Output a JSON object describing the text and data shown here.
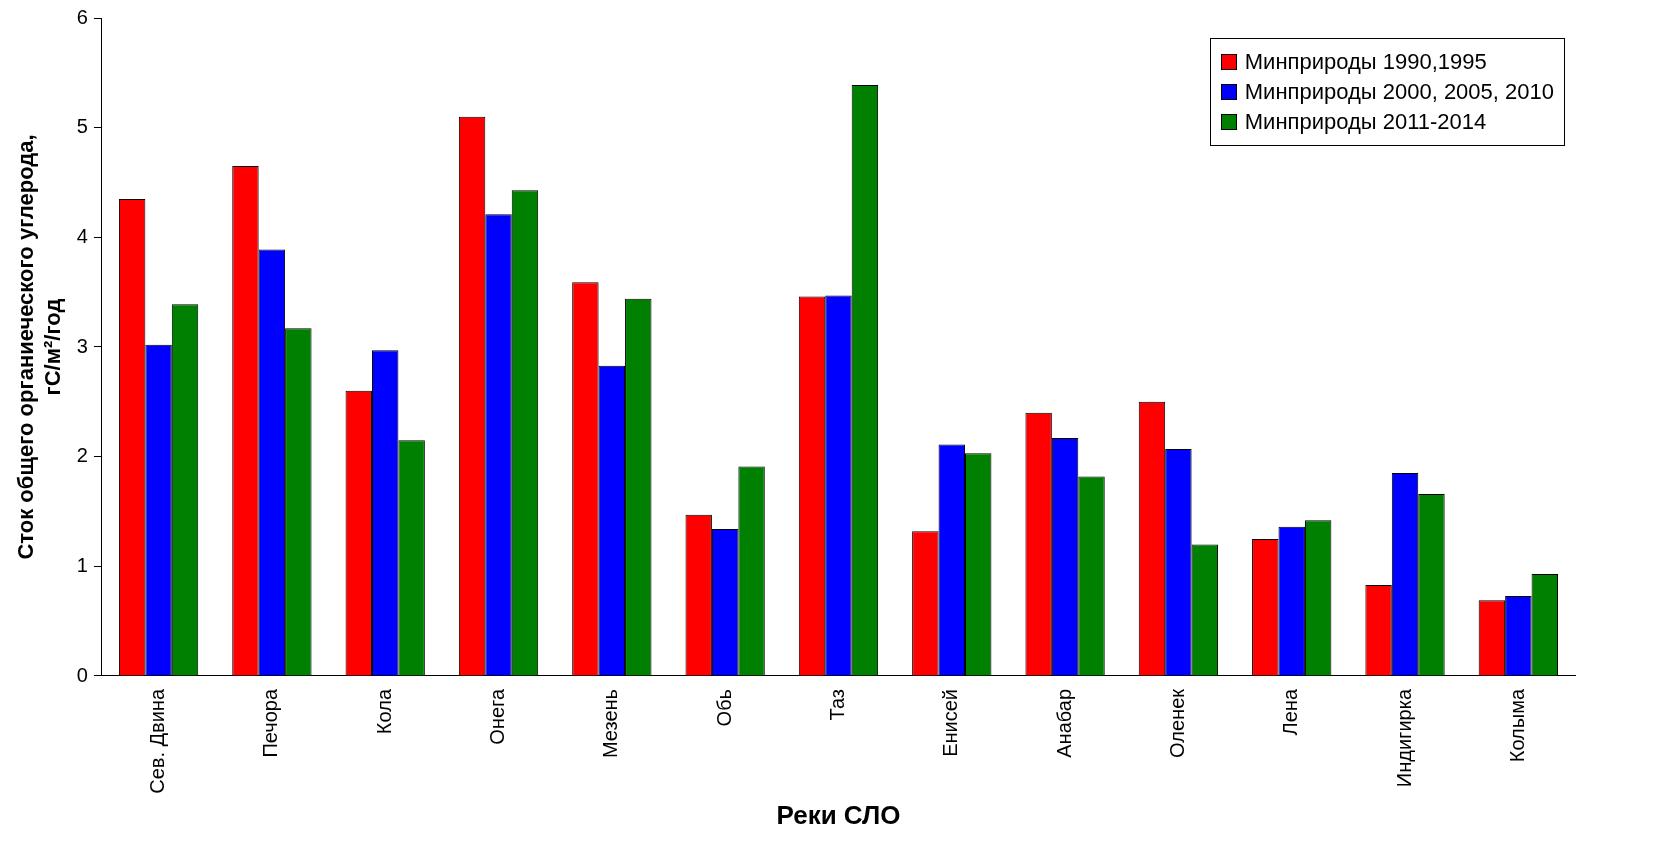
{
  "chart_data": {
    "type": "bar",
    "xlabel": "Реки СЛО",
    "ylabel": "Сток общего органиеческого углерода, гС/м²/год",
    "categories": [
      "Сев. Двина",
      "Печора",
      "Кола",
      "Онега",
      "Мезень",
      "Обь",
      "Таз",
      "Енисей",
      "Анабар",
      "Оленек",
      "Лена",
      "Индигирка",
      "Колыма"
    ],
    "series": [
      {
        "name": "Минприроды 1990,1995",
        "color": "#ff0000",
        "values": [
          4.35,
          4.65,
          2.6,
          5.1,
          3.59,
          1.47,
          3.46,
          1.32,
          2.4,
          2.5,
          1.25,
          0.83,
          0.69
        ]
      },
      {
        "name": "Минприроды 2000, 2005, 2010",
        "color": "#0000ff",
        "values": [
          3.02,
          3.89,
          2.97,
          4.21,
          2.83,
          1.34,
          3.47,
          2.11,
          2.17,
          2.07,
          1.36,
          1.85,
          0.73
        ]
      },
      {
        "name": "Минприроды 2011-2014",
        "color": "#008000",
        "values": [
          3.39,
          3.17,
          2.15,
          4.43,
          3.44,
          1.91,
          5.39,
          2.03,
          1.82,
          1.2,
          1.42,
          1.66,
          0.93
        ]
      }
    ],
    "ylim": [
      0,
      6
    ],
    "yticks": [
      0,
      1,
      2,
      3,
      4,
      5,
      6
    ],
    "grid": false,
    "legend": "top right"
  }
}
